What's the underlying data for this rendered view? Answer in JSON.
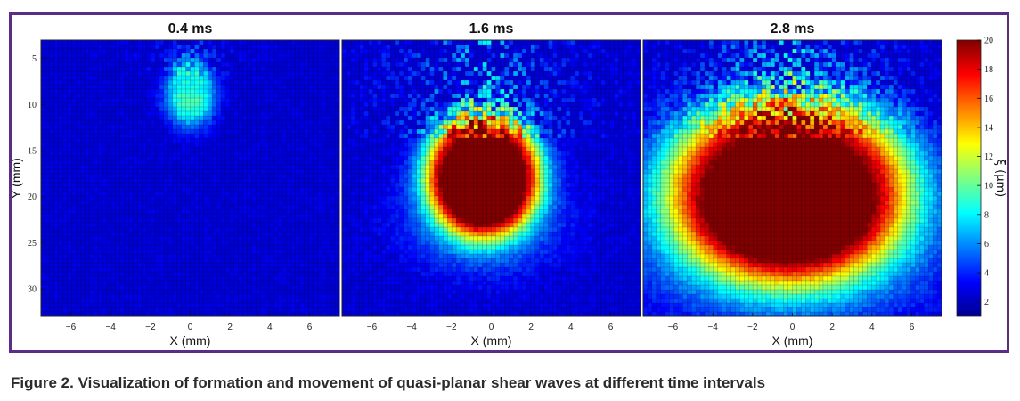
{
  "caption": "Figure 2. Visualization of formation and movement of quasi-planar shear waves at different time intervals",
  "chart_data": {
    "type": "heatmap",
    "panels": [
      {
        "title": "0.4 ms",
        "center_x": 0,
        "center_y": 8.5,
        "radius_x": 0.5,
        "radius_y": 1.5,
        "peak": 7,
        "spread": 4.5,
        "halo": 2.5
      },
      {
        "title": "1.6 ms",
        "center_x": -0.4,
        "center_y": 17.5,
        "radius_x": 1.7,
        "radius_y": 4,
        "peak": 20,
        "spread": 5.5,
        "halo": 6
      },
      {
        "title": "2.8 ms",
        "center_x": -0.2,
        "center_y": 19,
        "radius_x": 3.3,
        "radius_y": 5.5,
        "peak": 20,
        "spread": 9,
        "halo": 7
      }
    ],
    "xlabel": "X (mm)",
    "ylabel": "Y (mm)",
    "x_ticks": [
      -6,
      -4,
      -2,
      0,
      2,
      4,
      6
    ],
    "y_ticks": [
      5,
      10,
      15,
      20,
      25,
      30
    ],
    "xlim": [
      -7.5,
      7.5
    ],
    "ylim": [
      33,
      3
    ],
    "colorbar": {
      "label": "ξ (μm)",
      "min": 1,
      "max": 20,
      "ticks": [
        2,
        4,
        6,
        8,
        10,
        12,
        14,
        16,
        18,
        20
      ],
      "colormap": "jet"
    }
  }
}
